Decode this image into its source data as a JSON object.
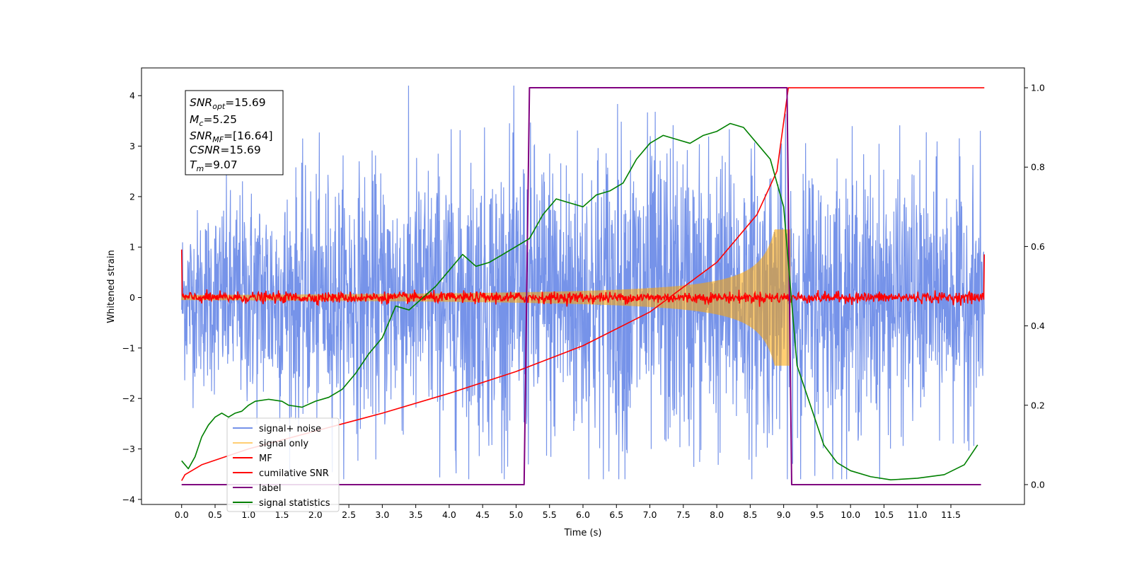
{
  "chart_data": {
    "type": "line",
    "xlabel": "Time (s)",
    "ylabel": "Whitened strain",
    "xlim": [
      -0.6,
      12.6
    ],
    "ylim": [
      -4.1,
      4.55
    ],
    "ylim_right": [
      -0.05,
      1.05
    ],
    "grid": false,
    "legend_position": "lower-left",
    "x_ticks": [
      "0.0",
      "0.5",
      "1.0",
      "1.5",
      "2.0",
      "2.5",
      "3.0",
      "3.5",
      "4.0",
      "4.5",
      "5.0",
      "5.5",
      "6.0",
      "6.5",
      "7.0",
      "7.5",
      "8.0",
      "8.5",
      "9.0",
      "9.5",
      "10.0",
      "10.5",
      "11.0",
      "11.5"
    ],
    "y_ticks": [
      "4",
      "3",
      "2",
      "1",
      "0",
      "−1",
      "−2",
      "−3",
      "−4"
    ],
    "y_ticks_right": [
      "1.0",
      "0.8",
      "0.6",
      "0.4",
      "0.2",
      "0.0"
    ],
    "annotation": {
      "snr_opt": {
        "name": "SNR",
        "sub": "opt",
        "value": "=15.69"
      },
      "mc": {
        "name": "M",
        "sub": "c",
        "value": "=5.25"
      },
      "snr_mf": {
        "name": "SNR",
        "sub": "MF",
        "value": "=[16.64]"
      },
      "csnr": {
        "name": "CSNR",
        "sub": "",
        "value": "=15.69"
      },
      "tm": {
        "name": "T",
        "sub": "m",
        "value": "=9.07"
      }
    },
    "series": [
      {
        "name": "signal+ noise",
        "color": "#4169e1",
        "axis": "left",
        "kind": "noise",
        "envelope": [
          [
            0.0,
            1.8
          ],
          [
            1.0,
            2.5
          ],
          [
            3.0,
            2.9
          ],
          [
            6.5,
            3.7
          ],
          [
            9.0,
            3.2
          ],
          [
            12.0,
            2.6
          ]
        ],
        "x_range": [
          0.0,
          12.0
        ]
      },
      {
        "name": "signal only",
        "color": "#ffa500",
        "axis": "left",
        "kind": "chirp",
        "t_merger": 9.1,
        "amplitude_at_merger": 1.35,
        "amplitude_at_start": 0.05
      },
      {
        "name": "MF",
        "color": "#ff0000",
        "axis": "left",
        "kind": "noise",
        "amplitude": 0.12,
        "edge_value": 0.95,
        "x_range": [
          0.0,
          12.0
        ]
      },
      {
        "name": "cumilative SNR",
        "color": "#ff0000",
        "axis": "right",
        "points": [
          [
            0.0,
            0.01
          ],
          [
            0.05,
            0.025
          ],
          [
            0.3,
            0.05
          ],
          [
            1.0,
            0.09
          ],
          [
            2.0,
            0.135
          ],
          [
            3.0,
            0.18
          ],
          [
            4.0,
            0.23
          ],
          [
            5.0,
            0.285
          ],
          [
            6.0,
            0.35
          ],
          [
            7.0,
            0.435
          ],
          [
            8.0,
            0.56
          ],
          [
            8.6,
            0.68
          ],
          [
            8.9,
            0.79
          ],
          [
            9.07,
            1.0
          ],
          [
            12.0,
            1.0
          ]
        ]
      },
      {
        "name": "label",
        "color": "#800080",
        "axis": "right",
        "points": [
          [
            0.0,
            0.0
          ],
          [
            5.12,
            0.0
          ],
          [
            5.2,
            1.0
          ],
          [
            9.05,
            1.0
          ],
          [
            9.12,
            0.0
          ],
          [
            11.95,
            0.0
          ]
        ]
      },
      {
        "name": "signal statistics",
        "color": "#008000",
        "axis": "right",
        "points": [
          [
            0.0,
            0.06
          ],
          [
            0.1,
            0.04
          ],
          [
            0.2,
            0.07
          ],
          [
            0.3,
            0.12
          ],
          [
            0.4,
            0.15
          ],
          [
            0.5,
            0.17
          ],
          [
            0.6,
            0.18
          ],
          [
            0.7,
            0.17
          ],
          [
            0.8,
            0.18
          ],
          [
            0.9,
            0.185
          ],
          [
            1.0,
            0.2
          ],
          [
            1.1,
            0.21
          ],
          [
            1.3,
            0.215
          ],
          [
            1.5,
            0.21
          ],
          [
            1.6,
            0.2
          ],
          [
            1.8,
            0.195
          ],
          [
            2.0,
            0.21
          ],
          [
            2.2,
            0.22
          ],
          [
            2.4,
            0.24
          ],
          [
            2.6,
            0.28
          ],
          [
            2.8,
            0.33
          ],
          [
            3.0,
            0.37
          ],
          [
            3.2,
            0.45
          ],
          [
            3.4,
            0.44
          ],
          [
            3.6,
            0.47
          ],
          [
            3.8,
            0.5
          ],
          [
            4.0,
            0.54
          ],
          [
            4.2,
            0.58
          ],
          [
            4.4,
            0.55
          ],
          [
            4.6,
            0.56
          ],
          [
            4.8,
            0.58
          ],
          [
            5.0,
            0.6
          ],
          [
            5.2,
            0.62
          ],
          [
            5.4,
            0.68
          ],
          [
            5.6,
            0.72
          ],
          [
            5.8,
            0.71
          ],
          [
            6.0,
            0.7
          ],
          [
            6.2,
            0.73
          ],
          [
            6.4,
            0.74
          ],
          [
            6.6,
            0.76
          ],
          [
            6.8,
            0.82
          ],
          [
            7.0,
            0.86
          ],
          [
            7.2,
            0.88
          ],
          [
            7.4,
            0.87
          ],
          [
            7.6,
            0.86
          ],
          [
            7.8,
            0.88
          ],
          [
            8.0,
            0.89
          ],
          [
            8.2,
            0.91
          ],
          [
            8.4,
            0.9
          ],
          [
            8.6,
            0.86
          ],
          [
            8.8,
            0.82
          ],
          [
            9.0,
            0.7
          ],
          [
            9.2,
            0.3
          ],
          [
            9.4,
            0.2
          ],
          [
            9.6,
            0.1
          ],
          [
            9.8,
            0.055
          ],
          [
            10.0,
            0.035
          ],
          [
            10.3,
            0.02
          ],
          [
            10.6,
            0.012
          ],
          [
            11.0,
            0.016
          ],
          [
            11.4,
            0.025
          ],
          [
            11.7,
            0.05
          ],
          [
            11.9,
            0.1
          ]
        ]
      }
    ]
  }
}
